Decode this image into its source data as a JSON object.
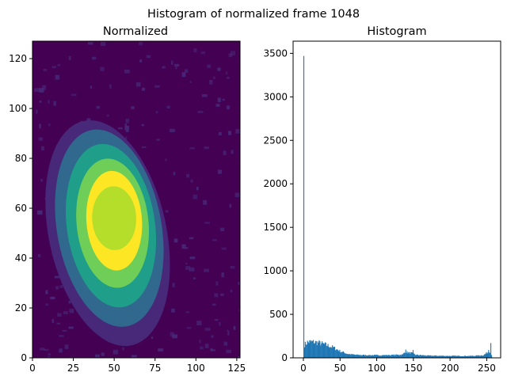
{
  "figure": {
    "suptitle": "Histogram of normalized frame 1048"
  },
  "colors": {
    "viridis_levels": [
      "#440154",
      "#482878",
      "#3e4989",
      "#31688e",
      "#26828e",
      "#1f9e89",
      "#35b779",
      "#6ece58",
      "#b5de2b",
      "#fde725"
    ],
    "hist_bar": "#1f77b4"
  },
  "chart_data": [
    {
      "type": "heatmap",
      "title": "Normalized",
      "xlabel": "",
      "ylabel": "",
      "xlim": [
        0,
        127
      ],
      "ylim": [
        0,
        127
      ],
      "xticks": [
        0,
        25,
        50,
        75,
        100,
        125
      ],
      "yticks": [
        0,
        20,
        40,
        60,
        80,
        100,
        120
      ],
      "contours": [
        {
          "level": 1,
          "center": [
            46,
            50
          ],
          "radii": [
            36,
            46
          ],
          "angle": -12
        },
        {
          "level": 2,
          "center": [
            47,
            52
          ],
          "radii": [
            32,
            40
          ],
          "angle": -10
        },
        {
          "level": 3,
          "center": [
            48,
            53
          ],
          "radii": [
            27,
            33
          ],
          "angle": -8
        },
        {
          "level": 4,
          "center": [
            49,
            54
          ],
          "radii": [
            22,
            26
          ],
          "angle": -6
        },
        {
          "level": 5,
          "center": [
            50,
            55
          ],
          "radii": [
            17,
            20
          ],
          "angle": -4
        },
        {
          "level": 6,
          "center": [
            50,
            56
          ],
          "radii": [
            15,
            16
          ],
          "angle": -2
        }
      ]
    },
    {
      "type": "bar",
      "title": "Histogram",
      "xlabel": "",
      "ylabel": "",
      "xlim": [
        -14,
        269
      ],
      "ylim": [
        0,
        3640
      ],
      "xticks": [
        0,
        50,
        100,
        150,
        200,
        250
      ],
      "yticks": [
        0,
        500,
        1000,
        1500,
        2000,
        2500,
        3000,
        3500
      ],
      "spikes": [
        {
          "x": 0,
          "value": 3470
        },
        {
          "x": 139,
          "value": 95
        },
        {
          "x": 149,
          "value": 90
        },
        {
          "x": 252,
          "value": 90
        },
        {
          "x": 255,
          "value": 170
        }
      ],
      "profile": [
        {
          "x": 1,
          "value": 150
        },
        {
          "x": 5,
          "value": 180
        },
        {
          "x": 10,
          "value": 185
        },
        {
          "x": 20,
          "value": 175
        },
        {
          "x": 30,
          "value": 150
        },
        {
          "x": 40,
          "value": 120
        },
        {
          "x": 50,
          "value": 75
        },
        {
          "x": 60,
          "value": 45
        },
        {
          "x": 70,
          "value": 35
        },
        {
          "x": 80,
          "value": 32
        },
        {
          "x": 100,
          "value": 30
        },
        {
          "x": 120,
          "value": 32
        },
        {
          "x": 135,
          "value": 38
        },
        {
          "x": 138,
          "value": 70
        },
        {
          "x": 142,
          "value": 60
        },
        {
          "x": 147,
          "value": 55
        },
        {
          "x": 152,
          "value": 35
        },
        {
          "x": 170,
          "value": 25
        },
        {
          "x": 200,
          "value": 22
        },
        {
          "x": 230,
          "value": 22
        },
        {
          "x": 245,
          "value": 30
        },
        {
          "x": 250,
          "value": 60
        },
        {
          "x": 254,
          "value": 70
        },
        {
          "x": 256,
          "value": 40
        }
      ]
    }
  ]
}
